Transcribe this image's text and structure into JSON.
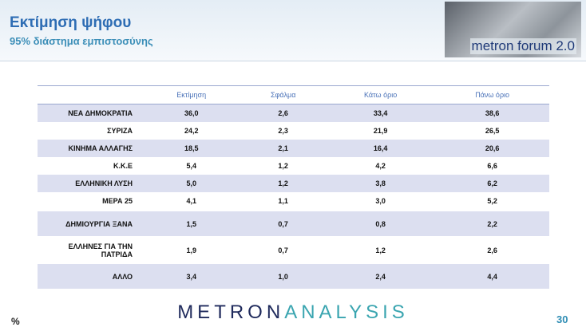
{
  "header": {
    "title": "Εκτίμηση ψήφου",
    "subtitle": "95% διάστημα εμπιστοσύνης",
    "logo": "metron forum 2.0"
  },
  "table": {
    "columns": [
      "Εκτίμηση",
      "Σφάλμα",
      "Κάτω όριο",
      "Πάνω όριο"
    ],
    "rows": [
      [
        "ΝΕΑ ΔΗΜΟΚΡΑΤΙΑ",
        "36,0",
        "2,6",
        "33,4",
        "38,6"
      ],
      [
        "ΣΥΡΙΖΑ",
        "24,2",
        "2,3",
        "21,9",
        "26,5"
      ],
      [
        "ΚΙΝΗΜΑ ΑΛΛΑΓΗΣ",
        "18,5",
        "2,1",
        "16,4",
        "20,6"
      ],
      [
        "Κ.Κ.Ε",
        "5,4",
        "1,2",
        "4,2",
        "6,6"
      ],
      [
        "ΕΛΛΗΝΙΚΗ ΛΥΣΗ",
        "5,0",
        "1,2",
        "3,8",
        "6,2"
      ],
      [
        "ΜΕΡΑ 25",
        "4,1",
        "1,1",
        "3,0",
        "5,2"
      ],
      [
        "ΔΗΜΙΟΥΡΓΙΑ ΞΑΝΑ",
        "1,5",
        "0,7",
        "0,8",
        "2,2"
      ],
      [
        "ΕΛΛΗΝΕΣ ΓΙΑ ΤΗΝ ΠΑΤΡΙΔΑ",
        "1,9",
        "0,7",
        "1,2",
        "2,6"
      ],
      [
        "ΑΛΛΟ",
        "3,4",
        "1,0",
        "2,4",
        "4,4"
      ]
    ]
  },
  "footer": {
    "unit": "%",
    "brand_left": "METRON",
    "brand_right": "ANALYSIS",
    "page": "30"
  }
}
